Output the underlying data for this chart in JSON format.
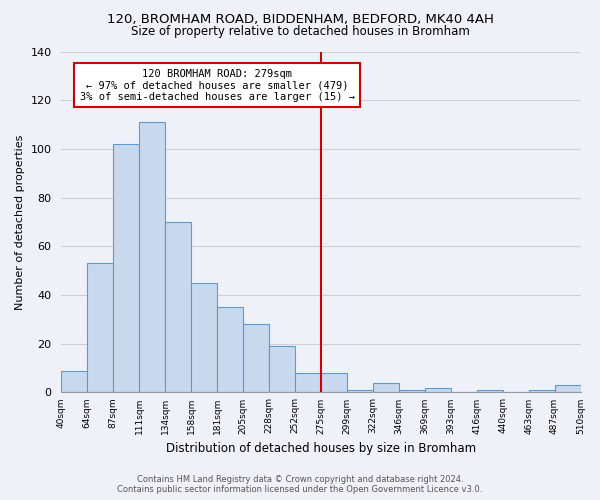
{
  "title": "120, BROMHAM ROAD, BIDDENHAM, BEDFORD, MK40 4AH",
  "subtitle": "Size of property relative to detached houses in Bromham",
  "xlabel": "Distribution of detached houses by size in Bromham",
  "ylabel": "Number of detached properties",
  "footer_line1": "Contains HM Land Registry data © Crown copyright and database right 2024.",
  "footer_line2": "Contains public sector information licensed under the Open Government Licence v3.0.",
  "bar_values": [
    9,
    53,
    102,
    111,
    70,
    45,
    35,
    28,
    19,
    8,
    8,
    1,
    4,
    1,
    2,
    0,
    1,
    0,
    1,
    3
  ],
  "bin_labels": [
    "40sqm",
    "64sqm",
    "87sqm",
    "111sqm",
    "134sqm",
    "158sqm",
    "181sqm",
    "205sqm",
    "228sqm",
    "252sqm",
    "275sqm",
    "299sqm",
    "322sqm",
    "346sqm",
    "369sqm",
    "393sqm",
    "416sqm",
    "440sqm",
    "463sqm",
    "487sqm",
    "510sqm"
  ],
  "bar_color": "#c9d9ed",
  "bar_edge_color": "#5b9bd5",
  "marker_label": "120 BROMHAM ROAD: 279sqm",
  "annotation_line1": "← 97% of detached houses are smaller (479)",
  "annotation_line2": "3% of semi-detached houses are larger (15) →",
  "vline_color": "#cc0000",
  "ylim": [
    0,
    140
  ],
  "yticks": [
    0,
    20,
    40,
    60,
    80,
    100,
    120,
    140
  ],
  "grid_color": "#d0d0d0",
  "background_color": "#eef2f8",
  "vline_bin_index": 10
}
